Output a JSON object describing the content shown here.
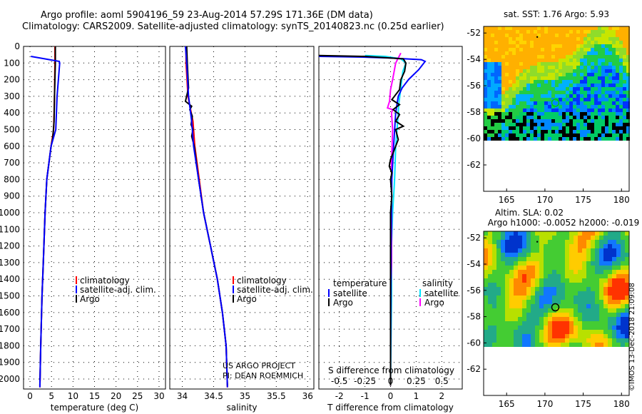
{
  "header": {
    "line1": "Argo profile: aoml 5904196_59 23-Aug-2014 57.29S 171.36E (DM data)",
    "line2": "Climatology: CARS2009. Satellite-adjusted climatology: synTS_20140823.nc (0.25d earlier)"
  },
  "credits": {
    "project": "US ARGO PROJECT",
    "pi": "PI: DEAN ROEMMICH",
    "stamp": "©IMOS 13-Dec-2018 21:09:08"
  },
  "colors": {
    "climatology": "#ff0000",
    "satellite": "#0000ff",
    "argo": "#000000",
    "sal_satellite": "#00e5ff",
    "sal_argo": "#ff00ff"
  },
  "chart_data": [
    {
      "id": "temperature",
      "type": "line",
      "xlabel": "temperature (deg C)",
      "xlim": [
        -1.5,
        31.5
      ],
      "ylim": [
        2060,
        0
      ],
      "xticks": [
        0,
        5,
        10,
        15,
        20,
        25,
        30
      ],
      "yticks": [
        0,
        100,
        200,
        300,
        400,
        500,
        600,
        700,
        800,
        900,
        1000,
        1100,
        1200,
        1300,
        1400,
        1500,
        1600,
        1700,
        1800,
        1900,
        2000
      ],
      "legend": [
        "climatology",
        "satellite-adj. clim.",
        "Argo"
      ],
      "series": [
        {
          "name": "climatology",
          "points": [
            [
              5.8,
              0
            ],
            [
              5.8,
              100
            ],
            [
              5.7,
              300
            ],
            [
              5.5,
              500
            ],
            [
              4.9,
              600
            ],
            [
              4.4,
              700
            ],
            [
              3.9,
              800
            ],
            [
              3.5,
              1000
            ],
            [
              3.1,
              1300
            ],
            [
              2.8,
              1500
            ],
            [
              2.5,
              1800
            ],
            [
              2.3,
              2050
            ]
          ]
        },
        {
          "name": "satellite-adj. clim.",
          "points": [
            [
              0.2,
              60
            ],
            [
              3.5,
              75
            ],
            [
              6.8,
              90
            ],
            [
              6.9,
              100
            ],
            [
              6.3,
              300
            ],
            [
              6.0,
              500
            ],
            [
              4.9,
              600
            ],
            [
              4.4,
              700
            ],
            [
              3.9,
              800
            ],
            [
              3.5,
              1000
            ],
            [
              3.1,
              1300
            ],
            [
              2.8,
              1500
            ],
            [
              2.5,
              1800
            ],
            [
              2.3,
              2050
            ]
          ]
        },
        {
          "name": "Argo",
          "points": [
            [
              5.9,
              0
            ],
            [
              5.9,
              100
            ],
            [
              5.7,
              300
            ],
            [
              5.6,
              450
            ],
            [
              5.3,
              550
            ],
            [
              4.9,
              600
            ],
            [
              4.4,
              700
            ],
            [
              3.9,
              800
            ],
            [
              3.5,
              1000
            ],
            [
              3.1,
              1300
            ],
            [
              2.8,
              1500
            ],
            [
              2.5,
              1800
            ],
            [
              2.3,
              2040
            ]
          ]
        }
      ]
    },
    {
      "id": "salinity",
      "type": "line",
      "xlabel": "salinity",
      "xlim": [
        33.8,
        36.1
      ],
      "ylim": [
        2060,
        0
      ],
      "xticks": [
        34,
        34.5,
        35,
        35.5,
        36
      ],
      "legend": [
        "climatology",
        "satellite-adj. clim.",
        "Argo"
      ],
      "series": [
        {
          "name": "climatology",
          "points": [
            [
              34.06,
              0
            ],
            [
              34.06,
              100
            ],
            [
              34.09,
              300
            ],
            [
              34.17,
              450
            ],
            [
              34.2,
              600
            ],
            [
              34.27,
              800
            ],
            [
              34.34,
              1000
            ],
            [
              34.45,
              1200
            ],
            [
              34.56,
              1400
            ],
            [
              34.64,
              1600
            ],
            [
              34.7,
              1800
            ],
            [
              34.72,
              2050
            ]
          ]
        },
        {
          "name": "satellite-adj. clim.",
          "points": [
            [
              34.05,
              0
            ],
            [
              34.07,
              100
            ],
            [
              34.1,
              300
            ],
            [
              34.15,
              450
            ],
            [
              34.18,
              600
            ],
            [
              34.26,
              800
            ],
            [
              34.34,
              1000
            ],
            [
              34.45,
              1200
            ],
            [
              34.56,
              1400
            ],
            [
              34.64,
              1600
            ],
            [
              34.7,
              1800
            ],
            [
              34.72,
              2050
            ]
          ]
        },
        {
          "name": "Argo",
          "points": [
            [
              34.07,
              0
            ],
            [
              34.08,
              100
            ],
            [
              34.1,
              250
            ],
            [
              34.05,
              330
            ],
            [
              34.15,
              360
            ],
            [
              34.12,
              380
            ],
            [
              34.16,
              420
            ],
            [
              34.14,
              470
            ],
            [
              34.17,
              500
            ],
            [
              34.15,
              540
            ],
            [
              34.19,
              600
            ],
            [
              34.26,
              800
            ],
            [
              34.34,
              1000
            ],
            [
              34.45,
              1200
            ],
            [
              34.56,
              1400
            ],
            [
              34.64,
              1600
            ],
            [
              34.7,
              1800
            ],
            [
              34.72,
              2040
            ]
          ]
        }
      ]
    },
    {
      "id": "difference",
      "type": "line",
      "xlabel": "T difference from climatology",
      "secondary_xlabel": "S difference from climatology",
      "xlim": [
        -2.8,
        2.8
      ],
      "ylim": [
        2060,
        0
      ],
      "xticks": [
        -2,
        -1,
        0,
        1,
        2
      ],
      "secondary_xticks": [
        "-0.5",
        "-0.25",
        "0",
        "0.25",
        "0.5"
      ],
      "legend_groups": [
        {
          "title": "temperature",
          "items": [
            "satellite",
            "Argo"
          ]
        },
        {
          "title": "salinity",
          "items": [
            "satellite",
            "Argo"
          ]
        }
      ],
      "series": [
        {
          "name": "T satellite",
          "points": [
            [
              -2.8,
              60
            ],
            [
              -1,
              65
            ],
            [
              0,
              70
            ],
            [
              1.2,
              80
            ],
            [
              1.35,
              90
            ],
            [
              1.1,
              140
            ],
            [
              0.7,
              200
            ],
            [
              0.45,
              250
            ],
            [
              0.3,
              300
            ],
            [
              0.2,
              400
            ],
            [
              0.12,
              600
            ],
            [
              0.05,
              800
            ],
            [
              0.02,
              1200
            ],
            [
              0,
              2000
            ]
          ]
        },
        {
          "name": "T Argo",
          "points": [
            [
              -2.8,
              55
            ],
            [
              -1,
              60
            ],
            [
              0,
              70
            ],
            [
              0.5,
              75
            ],
            [
              0.6,
              100
            ],
            [
              0.55,
              150
            ],
            [
              0.4,
              200
            ],
            [
              0.35,
              260
            ],
            [
              0.05,
              320
            ],
            [
              0.35,
              350
            ],
            [
              0.1,
              380
            ],
            [
              0.35,
              410
            ],
            [
              0.2,
              450
            ],
            [
              0.5,
              480
            ],
            [
              0.2,
              500
            ],
            [
              0.3,
              560
            ],
            [
              0.1,
              640
            ],
            [
              0.0,
              680
            ],
            [
              -0.05,
              720
            ],
            [
              0.05,
              760
            ],
            [
              0.0,
              800
            ],
            [
              0.05,
              900
            ],
            [
              0.0,
              1000
            ],
            [
              0.0,
              1200
            ],
            [
              0.0,
              2040
            ]
          ]
        },
        {
          "name": "S satellite",
          "points": [
            [
              -0.25,
              55
            ],
            [
              -0.05,
              60
            ],
            [
              0.1,
              75
            ],
            [
              0.15,
              100
            ],
            [
              0.12,
              150
            ],
            [
              0.1,
              250
            ],
            [
              0.08,
              350
            ],
            [
              0.07,
              450
            ],
            [
              0.05,
              600
            ],
            [
              0.04,
              800
            ],
            [
              0.02,
              1000
            ],
            [
              0.01,
              1200
            ],
            [
              0.01,
              1500
            ],
            [
              0.0,
              2000
            ]
          ]
        },
        {
          "name": "S Argo",
          "points": [
            [
              0.1,
              40
            ],
            [
              0.05,
              100
            ],
            [
              0.02,
              200
            ],
            [
              0.0,
              260
            ],
            [
              -0.01,
              330
            ],
            [
              -0.03,
              370
            ],
            [
              0.02,
              380
            ],
            [
              0.01,
              400
            ],
            [
              0.02,
              500
            ],
            [
              0.01,
              700
            ],
            [
              0.01,
              1000
            ],
            [
              0.01,
              1300
            ],
            [
              0.0,
              1500
            ],
            [
              0.0,
              2040
            ]
          ]
        }
      ]
    },
    {
      "id": "sst-map",
      "type": "heatmap",
      "title": "sat. SST: 1.76 Argo: 5.93",
      "xlim": [
        162,
        181
      ],
      "ylim": [
        -64,
        -51.5
      ],
      "xticks": [
        165,
        170,
        175,
        180
      ],
      "yticks": [
        -52,
        -54,
        -56,
        -58,
        -60,
        -62
      ],
      "data_extent": {
        "lon": [
          162,
          181
        ],
        "lat": [
          -60,
          -51.5
        ]
      },
      "marker": {
        "lon": 171.36,
        "lat": -57.29,
        "color": "#00cc00"
      }
    },
    {
      "id": "sla-map",
      "type": "heatmap",
      "title": "Altim. SLA: 0.02",
      "subtitle": "Argo h1000: -0.0052 h2000: -0.019",
      "xlim": [
        162,
        181
      ],
      "ylim": [
        -64,
        -51.5
      ],
      "xticks": [
        165,
        170,
        175,
        180
      ],
      "yticks": [
        -52,
        -54,
        -56,
        -58,
        -60,
        -62
      ],
      "data_extent": {
        "lon": [
          162,
          181
        ],
        "lat": [
          -60,
          -51.5
        ]
      },
      "marker": {
        "lon": 171.36,
        "lat": -57.29,
        "color": "#000000"
      }
    }
  ]
}
